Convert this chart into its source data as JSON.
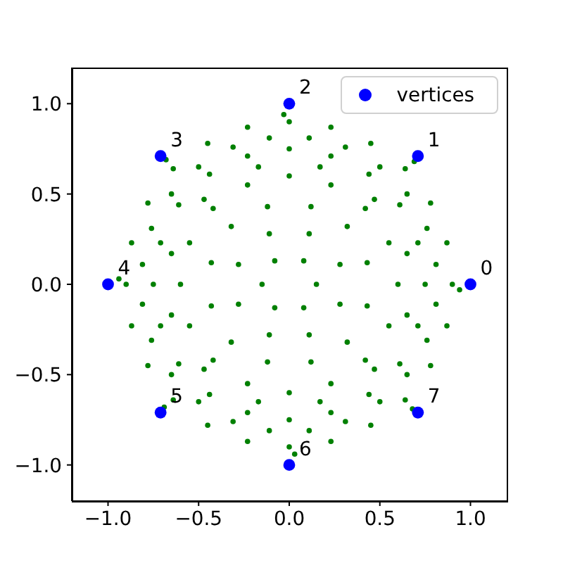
{
  "chart_data": {
    "type": "scatter",
    "series": [
      {
        "color": "#008000",
        "x": [
          0.9,
          0.87,
          0.78,
          0.64,
          0.45,
          0.23,
          0,
          -0.23,
          -0.45,
          -0.64,
          -0.78,
          -0.87,
          -0.9,
          -0.87,
          -0.78,
          -0.64,
          -0.45,
          -0.23,
          0,
          0.23,
          0.45,
          0.64,
          0.78,
          0.87,
          0.94,
          -0.03,
          -0.94,
          0.03,
          0.69,
          -0.68,
          -0.69,
          0.68,
          0.81,
          0.76,
          0.65,
          0.5,
          0.31,
          0.11,
          -0.11,
          -0.31,
          -0.5,
          -0.65,
          -0.76,
          -0.81,
          -0.81,
          -0.76,
          -0.65,
          -0.5,
          -0.31,
          -0.11,
          0.11,
          0.31,
          0.5,
          0.65,
          0.76,
          0.81,
          0.75,
          0.71,
          0.61,
          0.44,
          0.23,
          0,
          -0.23,
          -0.44,
          -0.61,
          -0.71,
          -0.75,
          -0.71,
          -0.61,
          -0.44,
          -0.23,
          0,
          0.23,
          0.44,
          0.61,
          0.71,
          0.65,
          0.47,
          0.17,
          -0.17,
          -0.47,
          -0.65,
          -0.65,
          -0.47,
          -0.17,
          0.17,
          0.47,
          0.65,
          0.6,
          0.55,
          0.42,
          0.23,
          0,
          -0.23,
          -0.42,
          -0.55,
          -0.6,
          -0.55,
          -0.42,
          -0.23,
          0,
          0.23,
          0.42,
          0.55,
          0.43,
          0.32,
          0.12,
          -0.12,
          -0.32,
          -0.43,
          -0.43,
          -0.32,
          -0.12,
          0.12,
          0.32,
          0.43,
          0.28,
          0.11,
          -0.11,
          -0.28,
          -0.28,
          -0.11,
          0.11,
          0.28,
          0.15,
          0.08,
          -0.08,
          -0.15,
          -0.08,
          0.08
        ],
        "values": [
          0,
          0.23,
          0.45,
          0.64,
          0.78,
          0.87,
          0.9,
          0.87,
          0.78,
          0.64,
          0.45,
          0.23,
          0,
          -0.23,
          -0.45,
          -0.64,
          -0.78,
          -0.87,
          -0.9,
          -0.87,
          -0.78,
          -0.64,
          -0.45,
          -0.23,
          -0.03,
          0.94,
          0.03,
          -0.94,
          0.68,
          0.69,
          -0.68,
          -0.69,
          0.11,
          0.31,
          0.5,
          0.65,
          0.76,
          0.81,
          0.81,
          0.76,
          0.65,
          0.5,
          0.31,
          0.11,
          -0.11,
          -0.31,
          -0.5,
          -0.65,
          -0.76,
          -0.81,
          -0.81,
          -0.76,
          -0.65,
          -0.5,
          -0.31,
          -0.11,
          0,
          0.23,
          0.44,
          0.61,
          0.71,
          0.75,
          0.71,
          0.61,
          0.44,
          0.23,
          0,
          -0.23,
          -0.44,
          -0.61,
          -0.71,
          -0.75,
          -0.71,
          -0.61,
          -0.44,
          -0.23,
          0.17,
          0.47,
          0.65,
          0.65,
          0.47,
          0.17,
          -0.17,
          -0.47,
          -0.65,
          -0.65,
          -0.47,
          -0.17,
          0,
          0.23,
          0.42,
          0.55,
          0.6,
          0.55,
          0.42,
          0.23,
          0,
          -0.23,
          -0.42,
          -0.55,
          -0.6,
          -0.55,
          -0.42,
          -0.23,
          0.12,
          0.32,
          0.43,
          0.43,
          0.32,
          0.12,
          -0.12,
          -0.32,
          -0.43,
          -0.43,
          -0.32,
          -0.12,
          0.11,
          0.28,
          0.28,
          0.11,
          -0.11,
          -0.28,
          -0.28,
          -0.11,
          0,
          0.13,
          0.13,
          0,
          -0.13,
          -0.13
        ]
      },
      {
        "name": "vertices",
        "color": "#0000ff",
        "x": [
          1,
          0.71,
          0,
          -0.71,
          -1,
          -0.71,
          0,
          0.71
        ],
        "values": [
          0,
          0.71,
          1,
          0.71,
          0,
          -0.71,
          -1,
          -0.71
        ]
      }
    ],
    "xlim": [
      -1.2,
      1.2
    ],
    "ylim": [
      -1.2,
      1.2
    ],
    "xticks": [
      {
        "value": -1,
        "label": "−1.0"
      },
      {
        "value": -0.5,
        "label": "−0.5"
      },
      {
        "value": 0,
        "label": "0.0"
      },
      {
        "value": 0.5,
        "label": "0.5"
      },
      {
        "value": 1,
        "label": "1.0"
      }
    ],
    "yticks": [
      {
        "value": -1,
        "label": "−1.0"
      },
      {
        "value": -0.5,
        "label": "−0.5"
      },
      {
        "value": 0,
        "label": "0.0"
      },
      {
        "value": 0.5,
        "label": "0.5"
      },
      {
        "value": 1,
        "label": "1.0"
      }
    ],
    "annotations": [
      {
        "text": "0",
        "x": 1,
        "y": 0
      },
      {
        "text": "1",
        "x": 0.71,
        "y": 0.71
      },
      {
        "text": "2",
        "x": 0,
        "y": 1
      },
      {
        "text": "3",
        "x": -0.71,
        "y": 0.71
      },
      {
        "text": "4",
        "x": -1,
        "y": 0
      },
      {
        "text": "5",
        "x": -0.71,
        "y": -0.71
      },
      {
        "text": "6",
        "x": 0,
        "y": -1
      },
      {
        "text": "7",
        "x": 0.71,
        "y": -0.71
      }
    ],
    "legend": "top right",
    "marker": "circle"
  }
}
